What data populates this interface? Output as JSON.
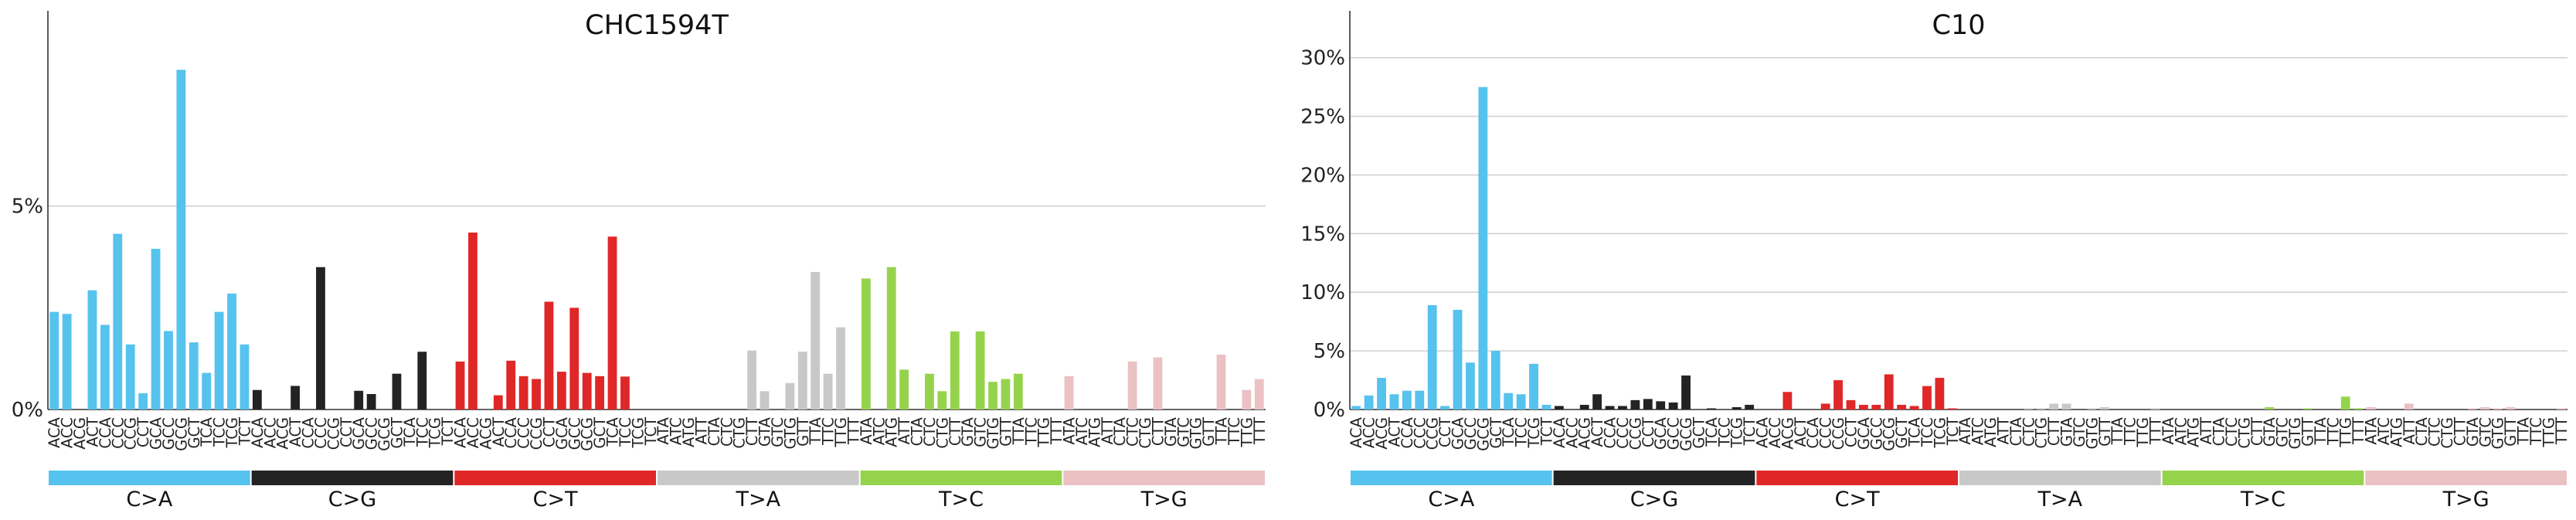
{
  "colors": {
    "C>A": "#56C2EE",
    "C>G": "#232323",
    "C>T": "#E02727",
    "T>A": "#C8C8C8",
    "T>C": "#96D34D",
    "T>G": "#EBC1C3",
    "grid": "#d0d0d0",
    "axis": "#333333"
  },
  "chart_data": [
    {
      "type": "bar",
      "title": "CHC1594T",
      "xlabel": "",
      "ylabel": "",
      "ylim": [
        0,
        0.098
      ],
      "yticks": [
        0,
        0.05
      ],
      "ytick_labels": [
        "0%",
        "5%"
      ],
      "grid": "horizontal",
      "mutation_types": [
        "C>A",
        "C>G",
        "C>T",
        "T>A",
        "T>C",
        "T>G"
      ],
      "contexts": [
        "A_A",
        "A_C",
        "A_G",
        "A_T",
        "C_A",
        "C_C",
        "C_G",
        "C_T",
        "G_A",
        "G_C",
        "G_G",
        "G_T",
        "T_A",
        "T_C",
        "T_G",
        "T_T"
      ],
      "values": {
        "C>A": [
          0.024,
          0.0235,
          0,
          0.0293,
          0.0208,
          0.0432,
          0.016,
          0.004,
          0.0395,
          0.0193,
          0.0835,
          0.0165,
          0.009,
          0.024,
          0.0285,
          0.016
        ],
        "C>G": [
          0.0048,
          0,
          0,
          0.0058,
          0,
          0.035,
          0,
          0,
          0.0046,
          0.0038,
          0,
          0.0088,
          0,
          0.0142,
          0,
          0
        ],
        "C>T": [
          0.0118,
          0.0435,
          0,
          0.0035,
          0.012,
          0.0082,
          0.0075,
          0.0265,
          0.0093,
          0.025,
          0.009,
          0.0082,
          0.0425,
          0.0081,
          0,
          0
        ],
        "T>A": [
          0,
          0,
          0,
          0,
          0,
          0,
          0,
          0.0145,
          0.0045,
          0,
          0.0065,
          0.0142,
          0.0338,
          0.0088,
          0.0202,
          0
        ],
        "T>C": [
          0.0322,
          0,
          0.035,
          0.0098,
          0,
          0.0088,
          0.0045,
          0.0192,
          0,
          0.0192,
          0.0068,
          0.0075,
          0.0088,
          0,
          0,
          0
        ],
        "T>G": [
          0.0082,
          0,
          0,
          0,
          0,
          0.0118,
          0,
          0.0128,
          0,
          0,
          0,
          0,
          0.0135,
          0,
          0.0048,
          0.0075
        ]
      }
    },
    {
      "type": "bar",
      "title": "C10",
      "xlabel": "",
      "ylabel": "",
      "ylim": [
        0,
        0.34
      ],
      "yticks": [
        0,
        0.05,
        0.1,
        0.15,
        0.2,
        0.25,
        0.3
      ],
      "ytick_labels": [
        "0%",
        "5%",
        "10%",
        "15%",
        "20%",
        "25%",
        "30%"
      ],
      "grid": "horizontal",
      "mutation_types": [
        "C>A",
        "C>G",
        "C>T",
        "T>A",
        "T>C",
        "T>G"
      ],
      "contexts": [
        "A_A",
        "A_C",
        "A_G",
        "A_T",
        "C_A",
        "C_C",
        "C_G",
        "C_T",
        "G_A",
        "G_C",
        "G_G",
        "G_T",
        "T_A",
        "T_C",
        "T_G",
        "T_T"
      ],
      "values": {
        "C>A": [
          0.003,
          0.012,
          0.027,
          0.013,
          0.016,
          0.016,
          0.089,
          0.003,
          0.085,
          0.04,
          0.275,
          0.05,
          0.014,
          0.013,
          0.039,
          0.004
        ],
        "C>G": [
          0.003,
          0,
          0.004,
          0.013,
          0.003,
          0.003,
          0.008,
          0.009,
          0.007,
          0.006,
          0.029,
          0,
          0.001,
          0,
          0.002,
          0.004
        ],
        "C>T": [
          0,
          0,
          0.015,
          0,
          0,
          0.005,
          0.025,
          0.008,
          0.004,
          0.004,
          0.03,
          0.004,
          0.003,
          0.02,
          0.027,
          0.001
        ],
        "T>A": [
          0,
          0,
          0,
          0,
          0,
          0.001,
          0.001,
          0.005,
          0.005,
          0,
          0.001,
          0.002,
          0,
          0,
          0,
          0.001
        ],
        "T>C": [
          0,
          0,
          0,
          0,
          0,
          0,
          0,
          0,
          0.002,
          0,
          0,
          0.001,
          0,
          0,
          0.011,
          0.001
        ],
        "T>G": [
          0.002,
          0,
          0,
          0.005,
          0,
          0,
          0,
          0,
          0.001,
          0.002,
          0.001,
          0.002,
          0,
          0,
          0,
          0.001
        ]
      }
    }
  ]
}
